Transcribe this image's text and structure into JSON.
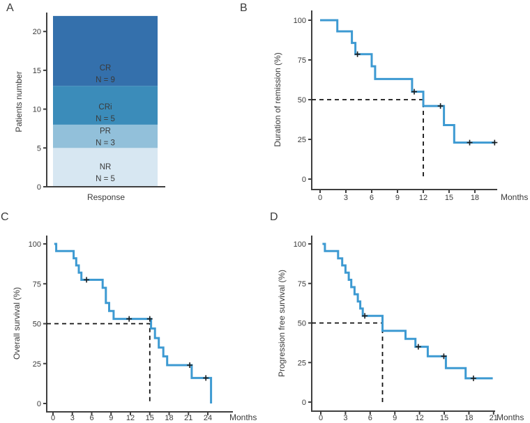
{
  "figure": {
    "background": "#ffffff",
    "km_line_color": "#3d9ad2",
    "axis_color": "#3f3f3f",
    "text_color": "#3a3a3a",
    "censor_color": "#1f1f1f",
    "median_dash_color": "#111111"
  },
  "chart_data": [
    {
      "panel": "A",
      "type": "bar",
      "subtype": "stacked-single-bar",
      "xlabel": "Response",
      "ylabel": "Patients number",
      "ylim": [
        0,
        22
      ],
      "yticks": [
        0,
        5,
        10,
        15,
        20
      ],
      "categories": [
        "Response"
      ],
      "total_patients": 22,
      "stack": [
        {
          "name": "NR",
          "label_lines": [
            "NR",
            "N = 5"
          ],
          "value": 5,
          "color": "#d7e7f2"
        },
        {
          "name": "PR",
          "label_lines": [
            "PR",
            "N = 3"
          ],
          "value": 3,
          "color": "#92c0da"
        },
        {
          "name": "CRi",
          "label_lines": [
            "CRi",
            "N = 5"
          ],
          "value": 5,
          "color": "#3b8cba"
        },
        {
          "name": "CR",
          "label_lines": [
            "CR",
            "N = 9"
          ],
          "value": 9,
          "color": "#3470ac"
        }
      ]
    },
    {
      "panel": "B",
      "type": "line",
      "subtype": "kaplan-meier",
      "xlabel": "Months",
      "ylabel": "Duration of remission (%)",
      "xlim": [
        0,
        20.8
      ],
      "ylim": [
        0,
        100
      ],
      "xticks": [
        0,
        3,
        6,
        9,
        12,
        15,
        18
      ],
      "yticks": [
        0,
        25,
        50,
        75,
        100
      ],
      "median": {
        "x": 12,
        "y": 50
      },
      "steps": [
        [
          0,
          100
        ],
        [
          2,
          100
        ],
        [
          2,
          93
        ],
        [
          3.7,
          93
        ],
        [
          3.7,
          85.7
        ],
        [
          4.1,
          85.7
        ],
        [
          4.1,
          78.6
        ],
        [
          6,
          78.6
        ],
        [
          6,
          71
        ],
        [
          6.4,
          71
        ],
        [
          6.4,
          63
        ],
        [
          10.7,
          63
        ],
        [
          10.7,
          55
        ],
        [
          12,
          55
        ],
        [
          12,
          46
        ],
        [
          14.4,
          46
        ],
        [
          14.4,
          34
        ],
        [
          15.6,
          34
        ],
        [
          15.6,
          23
        ],
        [
          20.4,
          23
        ]
      ],
      "censors": [
        [
          4.35,
          78.6
        ],
        [
          10.95,
          55
        ],
        [
          14,
          46
        ],
        [
          17.4,
          23
        ],
        [
          20.3,
          23
        ]
      ]
    },
    {
      "panel": "C",
      "type": "line",
      "subtype": "kaplan-meier",
      "xlabel": "Months",
      "ylabel": "Overall survival (%)",
      "xlim": [
        0,
        25.5
      ],
      "ylim": [
        0,
        100
      ],
      "xticks": [
        0,
        3,
        6,
        9,
        12,
        15,
        18,
        21,
        24
      ],
      "yticks": [
        0,
        25,
        50,
        75,
        100
      ],
      "median": {
        "x": 15,
        "y": 50
      },
      "steps": [
        [
          0.2,
          100
        ],
        [
          0.5,
          100
        ],
        [
          0.5,
          95.5
        ],
        [
          3.2,
          95.5
        ],
        [
          3.2,
          91
        ],
        [
          3.6,
          91
        ],
        [
          3.6,
          86.5
        ],
        [
          4,
          86.5
        ],
        [
          4,
          82
        ],
        [
          4.4,
          82
        ],
        [
          4.4,
          77.5
        ],
        [
          7.7,
          77.5
        ],
        [
          7.7,
          72.5
        ],
        [
          8.2,
          72.5
        ],
        [
          8.2,
          63
        ],
        [
          8.7,
          63
        ],
        [
          8.7,
          58
        ],
        [
          9.4,
          58
        ],
        [
          9.4,
          53
        ],
        [
          15.2,
          53
        ],
        [
          15.2,
          47
        ],
        [
          15.8,
          47
        ],
        [
          15.8,
          41
        ],
        [
          16.4,
          41
        ],
        [
          16.4,
          35
        ],
        [
          17.1,
          35
        ],
        [
          17.1,
          29.5
        ],
        [
          17.7,
          29.5
        ],
        [
          17.7,
          24
        ],
        [
          21.5,
          24
        ],
        [
          21.5,
          16
        ],
        [
          24.5,
          16
        ],
        [
          24.5,
          0
        ]
      ],
      "censors": [
        [
          5.2,
          77.5
        ],
        [
          11.8,
          53
        ],
        [
          15,
          53
        ],
        [
          21.2,
          24
        ],
        [
          23.7,
          16
        ]
      ]
    },
    {
      "panel": "D",
      "type": "line",
      "subtype": "kaplan-meier",
      "xlabel": "Months",
      "ylabel": "Progression free survival (%)",
      "xlim": [
        0,
        21
      ],
      "ylim": [
        0,
        100
      ],
      "xticks": [
        0,
        3,
        6,
        9,
        12,
        15,
        18,
        21
      ],
      "yticks": [
        0,
        25,
        50,
        75,
        100
      ],
      "median": {
        "x": 7.5,
        "y": 50
      },
      "steps": [
        [
          0.2,
          100
        ],
        [
          0.5,
          100
        ],
        [
          0.5,
          95.5
        ],
        [
          2.1,
          95.5
        ],
        [
          2.1,
          90.9
        ],
        [
          2.6,
          90.9
        ],
        [
          2.6,
          86.4
        ],
        [
          3,
          86.4
        ],
        [
          3,
          81.8
        ],
        [
          3.4,
          81.8
        ],
        [
          3.4,
          77.3
        ],
        [
          3.7,
          77.3
        ],
        [
          3.7,
          72.7
        ],
        [
          4.1,
          72.7
        ],
        [
          4.1,
          68.2
        ],
        [
          4.5,
          68.2
        ],
        [
          4.5,
          63.6
        ],
        [
          4.8,
          63.6
        ],
        [
          4.8,
          59.1
        ],
        [
          5.1,
          59.1
        ],
        [
          5.1,
          54.5
        ],
        [
          7.5,
          54.5
        ],
        [
          7.5,
          45
        ],
        [
          10.3,
          45
        ],
        [
          10.3,
          40
        ],
        [
          11.5,
          40
        ],
        [
          11.5,
          35
        ],
        [
          13,
          35
        ],
        [
          13,
          29
        ],
        [
          15.2,
          29
        ],
        [
          15.2,
          21.5
        ],
        [
          17.6,
          21.5
        ],
        [
          17.6,
          15
        ],
        [
          20.9,
          15
        ]
      ],
      "censors": [
        [
          5.35,
          54.5
        ],
        [
          11.85,
          35
        ],
        [
          14.95,
          29
        ],
        [
          18.55,
          15
        ]
      ]
    }
  ]
}
